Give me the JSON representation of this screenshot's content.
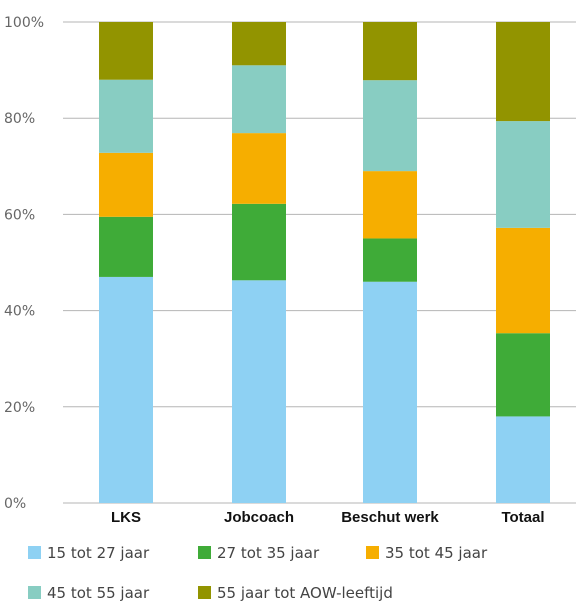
{
  "chart_data": {
    "type": "bar",
    "stacked": true,
    "categories": [
      "LKS",
      "Jobcoach",
      "Beschut werk",
      "Totaal"
    ],
    "ylim": [
      0,
      100
    ],
    "y_ticks": [
      "0%",
      "20%",
      "40%",
      "60%",
      "80%",
      "100%"
    ],
    "grid": "horizontal",
    "legend_position": "bottom",
    "series": [
      {
        "name": "15 tot 27 jaar",
        "color": "#8ed1f3",
        "values": [
          47,
          46.3,
          46,
          18
        ]
      },
      {
        "name": "27 tot 35 jaar",
        "color": "#3fab38",
        "values": [
          12.5,
          15.9,
          9,
          17.3
        ]
      },
      {
        "name": "35 tot 45 jaar",
        "color": "#f6ae00",
        "values": [
          13.3,
          14.7,
          14,
          21.9
        ]
      },
      {
        "name": "45 tot 55 jaar",
        "color": "#88cdc2",
        "values": [
          15.2,
          14.1,
          18.9,
          22.2
        ]
      },
      {
        "name": "55 jaar tot AOW-leeftijd",
        "color": "#929400",
        "values": [
          12,
          9,
          12.1,
          20.6
        ]
      }
    ]
  }
}
